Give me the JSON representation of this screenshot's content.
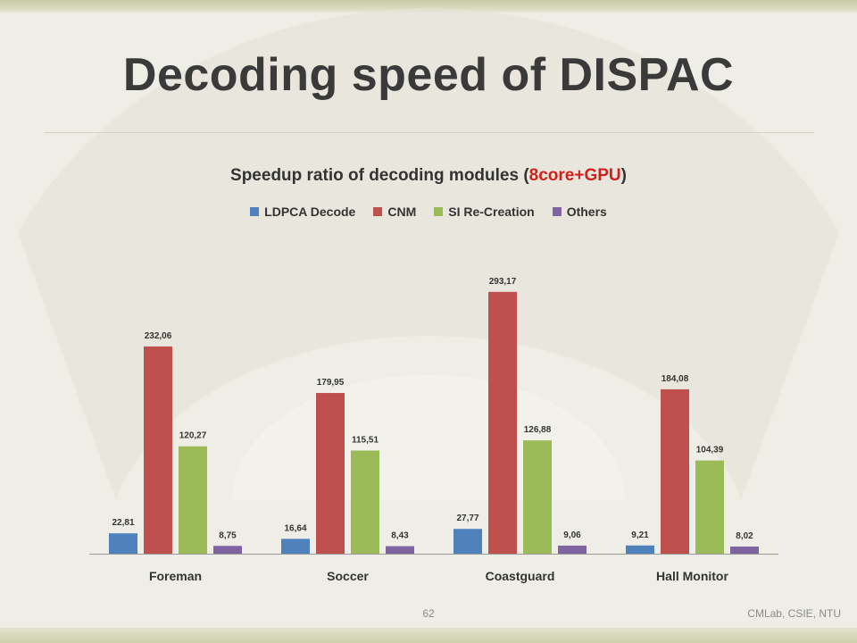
{
  "slide": {
    "title": "Decoding speed of DISPAC",
    "page_number": "62",
    "credit": "CMLab, CSIE, NTU"
  },
  "chart_data": {
    "type": "bar",
    "title_parts": [
      "Speedup ratio of decoding modules (",
      "8core+GPU",
      ")"
    ],
    "title": "Speedup ratio of decoding modules (8core+GPU)",
    "categories": [
      "Foreman",
      "Soccer",
      "Coastguard",
      "Hall Monitor"
    ],
    "series": [
      {
        "name": "LDPCA Decode",
        "color": "#4f81bd",
        "values": [
          22.81,
          16.64,
          27.77,
          9.21
        ],
        "labels": [
          "22,81",
          "16,64",
          "27,77",
          "9,21"
        ]
      },
      {
        "name": "CNM",
        "color": "#c0504d",
        "values": [
          232.06,
          179.95,
          293.17,
          184.08
        ],
        "labels": [
          "232,06",
          "179,95",
          "293,17",
          "184,08"
        ]
      },
      {
        "name": "SI Re-Creation",
        "color": "#9bbb59",
        "values": [
          120.27,
          115.51,
          126.88,
          104.39
        ],
        "labels": [
          "120,27",
          "115,51",
          "126,88",
          "104,39"
        ]
      },
      {
        "name": "Others",
        "color": "#8064a2",
        "values": [
          8.75,
          8.43,
          9.06,
          8.02
        ],
        "labels": [
          "8,75",
          "8,43",
          "9,06",
          "8,02"
        ]
      }
    ],
    "title_highlight_color": "#d0201b",
    "ylim": [
      0,
      300
    ],
    "grid": false,
    "legend_position": "top"
  }
}
